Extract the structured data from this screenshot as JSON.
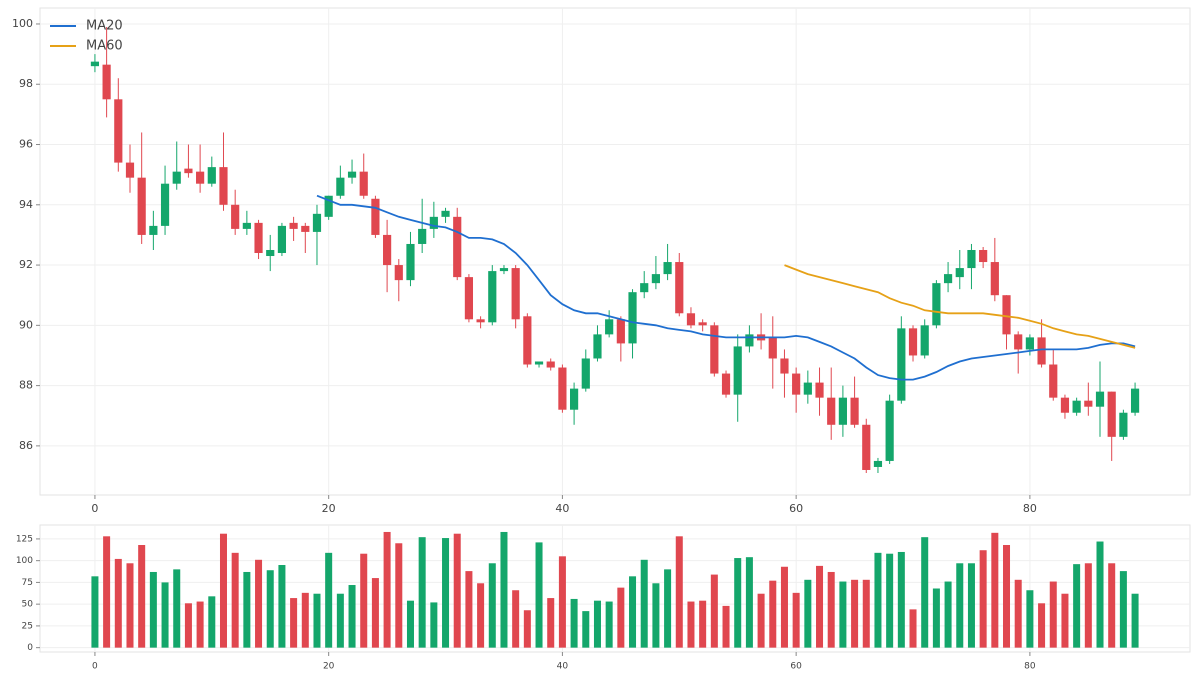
{
  "chart_data": [
    {
      "type": "candlestick",
      "x": [
        0,
        1,
        2,
        3,
        4,
        5,
        6,
        7,
        8,
        9,
        10,
        11,
        12,
        13,
        14,
        15,
        16,
        17,
        18,
        19,
        20,
        21,
        22,
        23,
        24,
        25,
        26,
        27,
        28,
        29,
        30,
        31,
        32,
        33,
        34,
        35,
        36,
        37,
        38,
        39,
        40,
        41,
        42,
        43,
        44,
        45,
        46,
        47,
        48,
        49,
        50,
        51,
        52,
        53,
        54,
        55,
        56,
        57,
        58,
        59,
        60,
        61,
        62,
        63,
        64,
        65,
        66,
        67,
        68,
        69,
        70,
        71,
        72,
        73,
        74,
        75,
        76,
        77,
        78,
        79,
        80,
        81,
        82,
        83,
        84,
        85,
        86,
        87,
        88,
        89
      ],
      "open": [
        98.6,
        98.65,
        97.5,
        95.4,
        94.9,
        93.0,
        93.3,
        94.7,
        95.2,
        95.1,
        94.7,
        95.25,
        94.0,
        93.2,
        93.4,
        92.3,
        92.4,
        93.4,
        93.3,
        93.1,
        93.6,
        94.3,
        94.9,
        95.1,
        94.2,
        93.0,
        92.0,
        91.5,
        92.7,
        93.2,
        93.6,
        93.6,
        91.6,
        90.2,
        90.1,
        91.8,
        91.9,
        90.3,
        88.7,
        88.8,
        88.6,
        87.2,
        87.9,
        88.9,
        89.7,
        90.2,
        89.4,
        91.1,
        91.4,
        91.7,
        92.1,
        90.4,
        90.1,
        90.0,
        88.4,
        87.7,
        89.3,
        89.7,
        89.6,
        88.9,
        88.4,
        87.7,
        88.1,
        87.6,
        86.7,
        87.6,
        86.7,
        85.3,
        85.5,
        87.5,
        89.9,
        89.0,
        90.0,
        91.4,
        91.6,
        91.9,
        92.5,
        92.1,
        91.0,
        89.7,
        89.2,
        89.6,
        88.7,
        87.6,
        87.1,
        87.5,
        87.3,
        87.8,
        86.3,
        87.1
      ],
      "high": [
        99.0,
        99.9,
        98.2,
        96.0,
        96.4,
        93.8,
        95.3,
        96.1,
        96.0,
        96.0,
        95.6,
        96.4,
        94.5,
        93.8,
        93.5,
        93.0,
        93.4,
        93.6,
        93.4,
        94.0,
        94.3,
        95.3,
        95.5,
        95.7,
        94.3,
        93.5,
        92.2,
        93.1,
        94.2,
        94.1,
        93.9,
        93.9,
        91.7,
        90.3,
        92.0,
        92.0,
        92.0,
        90.4,
        88.8,
        88.9,
        88.7,
        88.1,
        89.2,
        90.0,
        90.5,
        90.3,
        91.2,
        91.8,
        92.3,
        92.7,
        92.4,
        90.6,
        90.2,
        90.1,
        88.5,
        89.7,
        90.0,
        90.4,
        90.3,
        89.2,
        88.6,
        88.5,
        88.6,
        88.6,
        88.0,
        88.3,
        86.9,
        85.6,
        87.7,
        90.3,
        90.0,
        90.2,
        91.5,
        92.1,
        92.5,
        92.7,
        92.6,
        92.9,
        91.0,
        89.8,
        89.7,
        90.2,
        89.2,
        87.7,
        87.6,
        88.1,
        88.8,
        87.8,
        87.2,
        88.1
      ],
      "low": [
        98.4,
        96.9,
        95.1,
        94.4,
        92.7,
        92.5,
        93.0,
        94.5,
        94.9,
        94.4,
        94.6,
        93.8,
        93.0,
        93.0,
        92.2,
        91.8,
        92.3,
        92.8,
        92.4,
        92.0,
        93.5,
        94.2,
        94.7,
        94.2,
        92.9,
        91.1,
        90.8,
        91.3,
        92.4,
        92.9,
        93.4,
        91.5,
        90.1,
        89.9,
        90.0,
        91.7,
        89.9,
        88.6,
        88.6,
        88.5,
        87.1,
        86.7,
        87.8,
        88.8,
        89.6,
        88.8,
        88.9,
        90.9,
        91.2,
        91.5,
        90.3,
        89.9,
        89.8,
        88.3,
        87.6,
        86.8,
        89.1,
        89.2,
        87.9,
        87.6,
        87.1,
        87.4,
        87.0,
        86.2,
        86.3,
        86.6,
        85.1,
        85.1,
        85.4,
        87.4,
        88.8,
        88.9,
        89.9,
        91.1,
        91.2,
        91.2,
        91.9,
        90.8,
        89.2,
        88.4,
        89.0,
        88.6,
        87.5,
        86.9,
        87.0,
        87.0,
        86.3,
        85.5,
        86.2,
        87.0
      ],
      "close": [
        98.75,
        97.5,
        95.4,
        94.9,
        93.0,
        93.3,
        94.7,
        95.1,
        95.05,
        94.7,
        95.25,
        94.0,
        93.2,
        93.4,
        92.4,
        92.5,
        93.3,
        93.2,
        93.1,
        93.7,
        94.3,
        94.9,
        95.1,
        94.3,
        93.0,
        92.0,
        91.5,
        92.7,
        93.2,
        93.6,
        93.8,
        91.6,
        90.2,
        90.1,
        91.8,
        91.9,
        90.2,
        88.7,
        88.8,
        88.6,
        87.2,
        87.9,
        88.9,
        89.7,
        90.2,
        89.4,
        91.1,
        91.4,
        91.7,
        92.1,
        90.4,
        90.0,
        90.0,
        88.4,
        87.7,
        89.3,
        89.7,
        89.5,
        88.9,
        88.4,
        87.7,
        88.1,
        87.6,
        86.7,
        87.6,
        86.7,
        85.2,
        85.5,
        87.5,
        89.9,
        89.0,
        90.0,
        91.4,
        91.7,
        91.9,
        92.5,
        92.1,
        91.0,
        89.7,
        89.2,
        89.6,
        88.7,
        87.6,
        87.1,
        87.5,
        87.3,
        87.8,
        86.3,
        87.1,
        87.9
      ],
      "up_color": "#14a66b",
      "down_color": "#e0474f",
      "series": [
        {
          "name": "MA20",
          "color": "#1f6fd0",
          "values": [
            null,
            null,
            null,
            null,
            null,
            null,
            null,
            null,
            null,
            null,
            null,
            null,
            null,
            null,
            null,
            null,
            null,
            null,
            null,
            94.3,
            94.15,
            94.0,
            94.0,
            93.95,
            93.9,
            93.75,
            93.6,
            93.5,
            93.4,
            93.3,
            93.25,
            93.1,
            92.9,
            92.9,
            92.85,
            92.7,
            92.4,
            92.0,
            91.5,
            91.0,
            90.7,
            90.5,
            90.4,
            90.4,
            90.3,
            90.2,
            90.1,
            90.05,
            90.0,
            89.9,
            89.85,
            89.8,
            89.7,
            89.65,
            89.6,
            89.6,
            89.6,
            89.6,
            89.6,
            89.6,
            89.65,
            89.6,
            89.45,
            89.3,
            89.1,
            88.9,
            88.6,
            88.35,
            88.25,
            88.2,
            88.2,
            88.3,
            88.45,
            88.65,
            88.8,
            88.9,
            88.95,
            89.0,
            89.05,
            89.1,
            89.15,
            89.2,
            89.2,
            89.2,
            89.2,
            89.25,
            89.35,
            89.4,
            89.4,
            89.3
          ]
        },
        {
          "name": "MA60",
          "color": "#e6a117",
          "values": [
            null,
            null,
            null,
            null,
            null,
            null,
            null,
            null,
            null,
            null,
            null,
            null,
            null,
            null,
            null,
            null,
            null,
            null,
            null,
            null,
            null,
            null,
            null,
            null,
            null,
            null,
            null,
            null,
            null,
            null,
            null,
            null,
            null,
            null,
            null,
            null,
            null,
            null,
            null,
            null,
            null,
            null,
            null,
            null,
            null,
            null,
            null,
            null,
            null,
            null,
            null,
            null,
            null,
            null,
            null,
            null,
            null,
            null,
            null,
            92.0,
            91.85,
            91.7,
            91.6,
            91.5,
            91.4,
            91.3,
            91.2,
            91.1,
            90.9,
            90.75,
            90.65,
            90.5,
            90.45,
            90.4,
            90.4,
            90.4,
            90.4,
            90.35,
            90.3,
            90.25,
            90.15,
            90.05,
            89.9,
            89.8,
            89.7,
            89.65,
            89.55,
            89.45,
            89.35,
            89.25
          ]
        }
      ],
      "xlim": [
        -4.7,
        93.7
      ],
      "ylim": [
        84.37,
        100.53
      ],
      "xticks": [
        0,
        20,
        40,
        60,
        80
      ],
      "yticks": [
        86,
        88,
        90,
        92,
        94,
        96,
        98,
        100
      ],
      "grid": true,
      "legend": "upper left"
    },
    {
      "type": "bar",
      "x": [
        0,
        1,
        2,
        3,
        4,
        5,
        6,
        7,
        8,
        9,
        10,
        11,
        12,
        13,
        14,
        15,
        16,
        17,
        18,
        19,
        20,
        21,
        22,
        23,
        24,
        25,
        26,
        27,
        28,
        29,
        30,
        31,
        32,
        33,
        34,
        35,
        36,
        37,
        38,
        39,
        40,
        41,
        42,
        43,
        44,
        45,
        46,
        47,
        48,
        49,
        50,
        51,
        52,
        53,
        54,
        55,
        56,
        57,
        58,
        59,
        60,
        61,
        62,
        63,
        64,
        65,
        66,
        67,
        68,
        69,
        70,
        71,
        72,
        73,
        74,
        75,
        76,
        77,
        78,
        79,
        80,
        81,
        82,
        83,
        84,
        85,
        86,
        87,
        88,
        89
      ],
      "values": [
        82,
        128,
        102,
        97,
        118,
        87,
        75,
        90,
        51,
        53,
        59,
        131,
        109,
        87,
        101,
        89,
        95,
        57,
        63,
        62,
        109,
        62,
        72,
        108,
        80,
        133,
        120,
        54,
        127,
        52,
        126,
        131,
        88,
        74,
        97,
        133,
        66,
        43,
        121,
        57,
        105,
        56,
        42,
        54,
        53,
        69,
        82,
        101,
        74,
        90,
        128,
        53,
        54,
        84,
        48,
        103,
        104,
        62,
        77,
        93,
        63,
        78,
        94,
        87,
        76,
        78,
        78,
        109,
        108,
        110,
        44,
        127,
        68,
        76,
        97,
        97,
        112,
        132,
        118,
        78,
        66,
        51,
        76,
        62,
        96,
        97,
        122,
        97,
        88,
        62
      ],
      "xlim": [
        -4.7,
        93.7
      ],
      "ylim": [
        -5,
        141
      ],
      "xticks": [
        0,
        20,
        40,
        60,
        80
      ],
      "yticks": [
        0,
        25,
        50,
        75,
        100,
        125
      ],
      "grid": true
    }
  ]
}
